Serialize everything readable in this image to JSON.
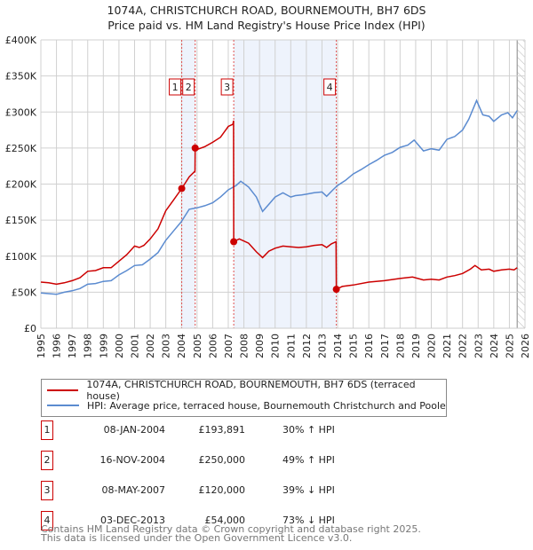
{
  "chart_data": {
    "type": "line",
    "title": "1074A, CHRISTCHURCH ROAD, BOURNEMOUTH, BH7 6DS",
    "subtitle": "Price paid vs. HM Land Registry's House Price Index (HPI)",
    "xlim": [
      1995,
      2026
    ],
    "ylim": [
      0,
      400000
    ],
    "y_ticks": [
      0,
      50000,
      100000,
      150000,
      200000,
      250000,
      300000,
      350000,
      400000
    ],
    "y_tick_labels": [
      "£0",
      "£50K",
      "£100K",
      "£150K",
      "£200K",
      "£250K",
      "£300K",
      "£350K",
      "£400K"
    ],
    "x_ticks": [
      "1995",
      "1996",
      "1997",
      "1998",
      "1999",
      "2000",
      "2001",
      "2002",
      "2003",
      "2004",
      "2005",
      "2006",
      "2007",
      "2008",
      "2009",
      "2010",
      "2011",
      "2012",
      "2013",
      "2014",
      "2015",
      "2016",
      "2017",
      "2018",
      "2019",
      "2020",
      "2021",
      "2022",
      "2023",
      "2024",
      "2025",
      "2026"
    ],
    "grid": true,
    "shaded_ranges": [
      [
        2004.02,
        2004.88
      ],
      [
        2007.35,
        2013.92
      ]
    ],
    "forecast_hatch_from": 2025.5,
    "colors": {
      "property": "#cc0000",
      "hpi": "#5b8bd0",
      "shade": "#eef3fc"
    },
    "series": [
      {
        "name": "1074A, CHRISTCHURCH ROAD, BOURNEMOUTH, BH7 6DS (terraced house)",
        "x": [
          1995,
          1995.5,
          1996,
          1996.5,
          1997,
          1997.5,
          1998,
          1998.5,
          1999,
          1999.5,
          2000,
          2000.5,
          2001,
          2001.3,
          2001.6,
          2002,
          2002.5,
          2003,
          2003.5,
          2004.02,
          2004.5,
          2004.87,
          2004.88,
          2005,
          2005.5,
          2006,
          2006.5,
          2007,
          2007.3,
          2007.34,
          2007.35,
          2007.7,
          2008.3,
          2008.8,
          2009.2,
          2009.6,
          2010,
          2010.5,
          2011,
          2011.5,
          2012,
          2012.5,
          2013,
          2013.3,
          2013.6,
          2013.9,
          2013.92,
          2014.3,
          2015,
          2016,
          2017,
          2018,
          2018.8,
          2019.5,
          2020,
          2020.5,
          2021,
          2021.5,
          2022,
          2022.5,
          2022.8,
          2023.2,
          2023.7,
          2024,
          2024.5,
          2025,
          2025.3,
          2025.5
        ],
        "y": [
          64000,
          63000,
          61000,
          63000,
          66000,
          70000,
          79000,
          80000,
          84000,
          84000,
          93000,
          102000,
          114000,
          112000,
          115000,
          124000,
          138000,
          163000,
          178000,
          193891,
          210000,
          218000,
          250000,
          248000,
          252000,
          258000,
          265000,
          280000,
          283000,
          288000,
          120000,
          124000,
          118000,
          106000,
          98000,
          107000,
          111000,
          114000,
          113000,
          112000,
          113000,
          115000,
          116000,
          112000,
          117000,
          120000,
          54000,
          58000,
          60000,
          64000,
          66000,
          69000,
          71000,
          67000,
          68000,
          67000,
          71000,
          73000,
          76000,
          82000,
          87000,
          81000,
          82000,
          79000,
          81000,
          82000,
          81000,
          84000
        ]
      },
      {
        "name": "HPI: Average price, terraced house, Bournemouth Christchurch and Poole",
        "x": [
          1995,
          1995.5,
          1996,
          1996.5,
          1997,
          1997.5,
          1998,
          1998.5,
          1999,
          1999.5,
          2000,
          2000.5,
          2001,
          2001.5,
          2002,
          2002.5,
          2003,
          2003.5,
          2004,
          2004.5,
          2005,
          2005.5,
          2006,
          2006.5,
          2007,
          2007.5,
          2007.8,
          2008.3,
          2008.8,
          2009.2,
          2009.6,
          2010,
          2010.5,
          2011,
          2011.3,
          2011.7,
          2012,
          2012.5,
          2013,
          2013.3,
          2013.7,
          2014,
          2014.5,
          2015,
          2015.5,
          2016,
          2016.5,
          2017,
          2017.5,
          2018,
          2018.5,
          2018.9,
          2019.5,
          2020,
          2020.5,
          2021,
          2021.5,
          2022,
          2022.4,
          2022.9,
          2023.3,
          2023.7,
          2024,
          2024.5,
          2024.9,
          2025.2,
          2025.5
        ],
        "y": [
          49000,
          48000,
          47000,
          50000,
          52000,
          55000,
          61000,
          62000,
          65000,
          66000,
          74000,
          80000,
          87000,
          88000,
          96000,
          105000,
          122000,
          135000,
          148000,
          165000,
          167000,
          170000,
          174000,
          182000,
          192000,
          198000,
          204000,
          196000,
          182000,
          162000,
          172000,
          182000,
          188000,
          182000,
          184000,
          185000,
          186000,
          188000,
          189000,
          183000,
          192000,
          198000,
          205000,
          214000,
          220000,
          227000,
          233000,
          240000,
          244000,
          251000,
          254000,
          261000,
          246000,
          249000,
          247000,
          262000,
          266000,
          275000,
          290000,
          316000,
          296000,
          294000,
          287000,
          296000,
          299000,
          292000,
          302000
        ]
      }
    ],
    "sales": [
      {
        "label": "1",
        "x": 2004.02,
        "y": 193891
      },
      {
        "label": "2",
        "x": 2004.88,
        "y": 250000
      },
      {
        "label": "3",
        "x": 2007.35,
        "y": 120000
      },
      {
        "label": "4",
        "x": 2013.92,
        "y": 54000
      }
    ],
    "legend_position": "below"
  },
  "legend": [
    "1074A, CHRISTCHURCH ROAD, BOURNEMOUTH, BH7 6DS (terraced house)",
    "HPI: Average price, terraced house, Bournemouth Christchurch and Poole"
  ],
  "transactions": [
    {
      "num": "1",
      "date": "08-JAN-2004",
      "price": "£193,891",
      "hpi": "30% ↑ HPI"
    },
    {
      "num": "2",
      "date": "16-NOV-2004",
      "price": "£250,000",
      "hpi": "49% ↑ HPI"
    },
    {
      "num": "3",
      "date": "08-MAY-2007",
      "price": "£120,000",
      "hpi": "39% ↓ HPI"
    },
    {
      "num": "4",
      "date": "03-DEC-2013",
      "price": "£54,000",
      "hpi": "73% ↓ HPI"
    }
  ],
  "footer": [
    "Contains HM Land Registry data © Crown copyright and database right 2025.",
    "This data is licensed under the Open Government Licence v3.0."
  ]
}
